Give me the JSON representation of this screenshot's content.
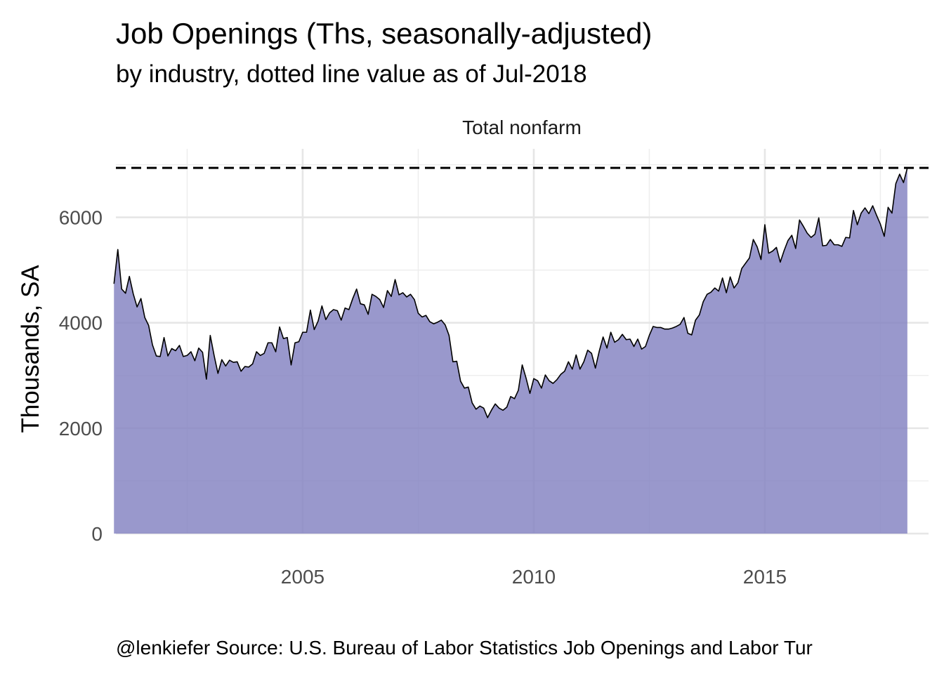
{
  "chart_data": {
    "type": "area",
    "title": "Job Openings (Ths, seasonally-adjusted)",
    "subtitle": "by industry, dotted line value as of Jul-2018",
    "facet": "Total nonfarm",
    "ylabel": "Thousands, SA",
    "xlabel": "",
    "caption": "@lenkiefer Source: U.S. Bureau of Labor Statistics Job Openings and Labor Tur",
    "xlim": [
      2000.9583,
      2018.5417
    ],
    "ylim": [
      0,
      7300
    ],
    "x_ticks": [
      2005,
      2010,
      2015
    ],
    "x_tick_labels": [
      "2005",
      "2010",
      "2015"
    ],
    "y_ticks": [
      0,
      2000,
      4000,
      6000
    ],
    "y_tick_labels": [
      "0",
      "2000",
      "4000",
      "6000"
    ],
    "grid": true,
    "reference_line": {
      "value": 6939,
      "style": "dashed",
      "color": "#000000"
    },
    "fill_color": "#8381c1",
    "line_color": "#000000",
    "x_start": "2000-12",
    "x_step": "1 month",
    "values": [
      4740,
      5390,
      4640,
      4560,
      4880,
      4550,
      4300,
      4460,
      4100,
      3950,
      3580,
      3370,
      3360,
      3720,
      3370,
      3510,
      3470,
      3570,
      3360,
      3380,
      3450,
      3280,
      3520,
      3440,
      2930,
      3760,
      3380,
      3040,
      3300,
      3180,
      3290,
      3250,
      3260,
      3080,
      3170,
      3160,
      3220,
      3450,
      3380,
      3420,
      3620,
      3620,
      3450,
      3920,
      3700,
      3720,
      3200,
      3620,
      3640,
      3820,
      3820,
      4240,
      3870,
      4030,
      4320,
      4060,
      4190,
      4250,
      4230,
      4050,
      4280,
      4250,
      4460,
      4640,
      4360,
      4340,
      4160,
      4540,
      4500,
      4440,
      4290,
      4610,
      4500,
      4820,
      4530,
      4570,
      4490,
      4540,
      4440,
      4180,
      4110,
      4140,
      4020,
      3980,
      4010,
      4050,
      3960,
      3760,
      3260,
      3270,
      2890,
      2760,
      2780,
      2480,
      2360,
      2420,
      2380,
      2200,
      2340,
      2460,
      2380,
      2340,
      2400,
      2600,
      2560,
      2720,
      3200,
      2950,
      2660,
      2940,
      2900,
      2760,
      3010,
      2900,
      2850,
      2920,
      3020,
      3080,
      3260,
      3120,
      3390,
      3120,
      3260,
      3480,
      3420,
      3140,
      3460,
      3730,
      3520,
      3820,
      3630,
      3680,
      3780,
      3680,
      3690,
      3550,
      3690,
      3500,
      3550,
      3760,
      3930,
      3910,
      3910,
      3880,
      3880,
      3900,
      3930,
      3970,
      4100,
      3800,
      3770,
      4050,
      4150,
      4400,
      4540,
      4580,
      4660,
      4600,
      4850,
      4570,
      4870,
      4660,
      4760,
      5030,
      5130,
      5230,
      5580,
      5440,
      5200,
      5860,
      5320,
      5360,
      5430,
      5150,
      5370,
      5560,
      5660,
      5410,
      5950,
      5830,
      5700,
      5620,
      5680,
      5990,
      5460,
      5470,
      5580,
      5480,
      5480,
      5450,
      5620,
      5610,
      6130,
      5860,
      6080,
      6180,
      6070,
      6220,
      6040,
      5870,
      5640,
      6190,
      6080,
      6640,
      6820,
      6660,
      6939
    ]
  }
}
